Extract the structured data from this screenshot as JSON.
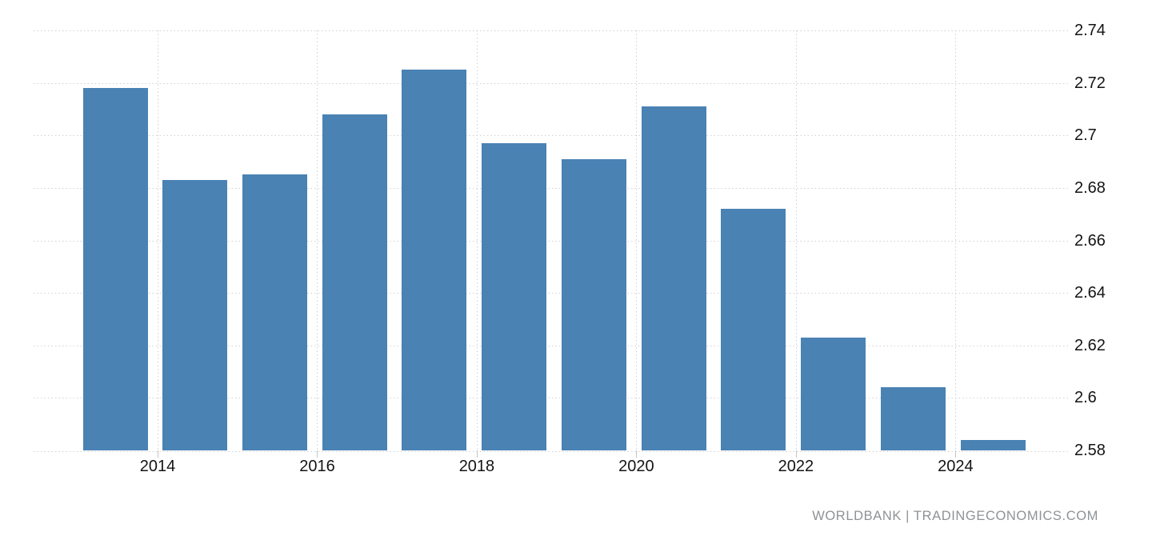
{
  "chart_data": {
    "type": "bar",
    "title": "",
    "xlabel": "",
    "ylabel": "",
    "categories": [
      2013,
      2014,
      2015,
      2016,
      2017,
      2018,
      2019,
      2020,
      2021,
      2022,
      2023,
      2024
    ],
    "values": [
      2.718,
      2.683,
      2.685,
      2.708,
      2.725,
      2.697,
      2.691,
      2.711,
      2.672,
      2.623,
      2.604,
      2.584
    ],
    "ylim": [
      2.58,
      2.74
    ],
    "y_tick_values": [
      2.58,
      2.6,
      2.62,
      2.64,
      2.66,
      2.68,
      2.7,
      2.72,
      2.74
    ],
    "y_tick_labels": [
      "2.58",
      "2.6",
      "2.62",
      "2.64",
      "2.66",
      "2.68",
      "2.7",
      "2.72",
      "2.74"
    ],
    "x_tick_years": [
      2014,
      2016,
      2018,
      2020,
      2022,
      2024
    ],
    "x_tick_labels": [
      "2014",
      "2016",
      "2018",
      "2020",
      "2022",
      "2024"
    ],
    "grid": true,
    "legend_position": "none",
    "y_axis_side": "right",
    "colors": {
      "bar": "#4A82B4",
      "grid": "#d2d2d2",
      "tick": "#c4c4c4",
      "axis_label": "#141414",
      "background": "#ffffff"
    }
  },
  "attribution": {
    "text": "WORLDBANK | TRADINGECONOMICS.COM",
    "color": "#8f9296"
  }
}
